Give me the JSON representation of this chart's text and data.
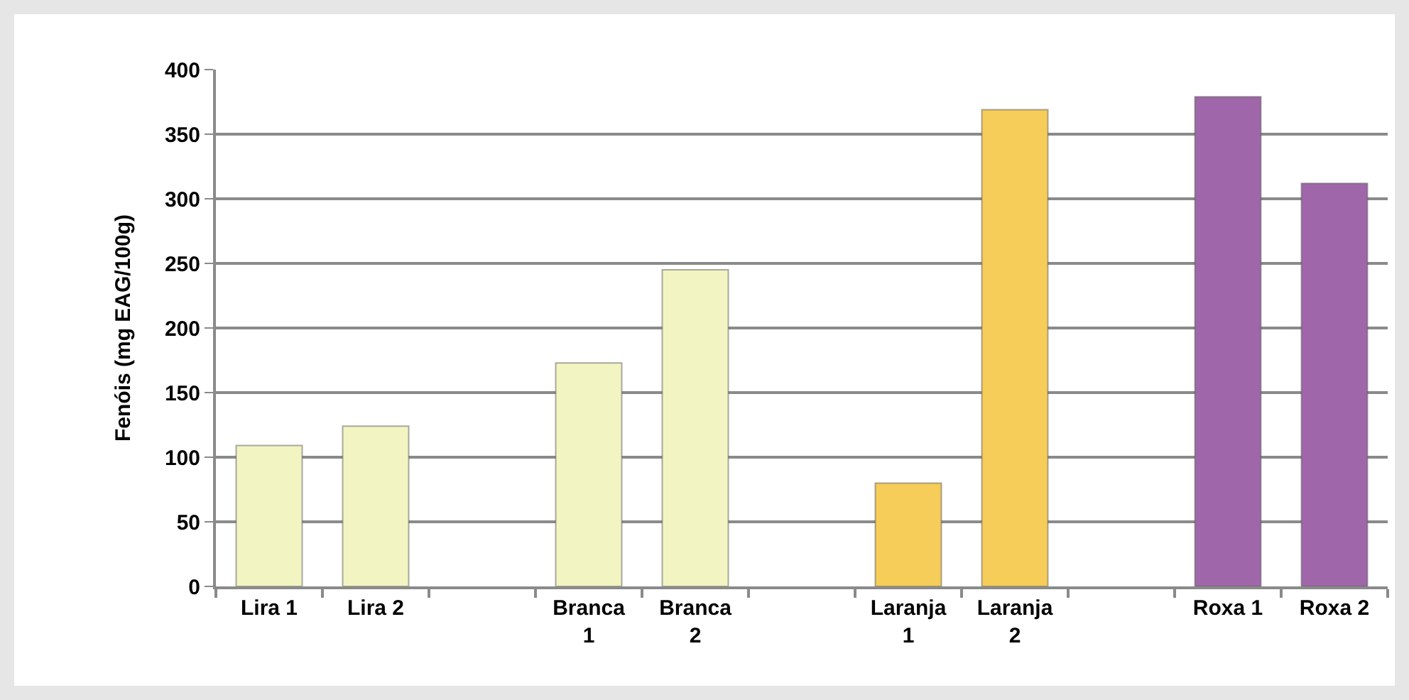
{
  "chart_data": {
    "type": "bar",
    "ylabel": "Fenóis (mg EAG/100g)",
    "categories": [
      "Lira 1",
      "Lira 2",
      null,
      "Branca 1",
      "Branca 2",
      null,
      "Laranja 1",
      "Laranja 2",
      null,
      "Roxa 1",
      "Roxa 2"
    ],
    "values": [
      109,
      124,
      null,
      173,
      245,
      null,
      80,
      369,
      null,
      379,
      312
    ],
    "colors": [
      "#f2f4c2",
      "#f2f4c2",
      null,
      "#f2f4c2",
      "#f2f4c2",
      null,
      "#f5cd58",
      "#f5cd58",
      null,
      "#a066aa",
      "#a066aa"
    ],
    "ylim": [
      0,
      400
    ],
    "yticks": [
      0,
      50,
      100,
      150,
      200,
      250,
      300,
      350,
      400
    ],
    "grid": "y"
  }
}
